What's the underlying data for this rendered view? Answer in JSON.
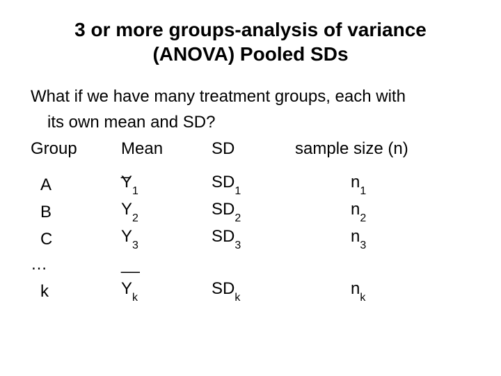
{
  "title_line1": "3 or more groups-analysis of variance",
  "title_line2": "(ANOVA) Pooled SDs",
  "intro_line1": "What if we have many treatment groups, each with",
  "intro_line2": "its own mean and SD?",
  "headers": {
    "group": "Group",
    "mean": "Mean",
    "sd": "SD",
    "n": "sample size (n)"
  },
  "overline1": "_",
  "overline2": "__",
  "rows": [
    {
      "group": "A",
      "mean_base": "Y",
      "mean_sub": "1",
      "sd_base": "SD",
      "sd_sub": "1",
      "n_base": "n",
      "n_sub": "1"
    },
    {
      "group": "B",
      "mean_base": "Y",
      "mean_sub": "2",
      "sd_base": "SD",
      "sd_sub": "2",
      "n_base": "n",
      "n_sub": "2"
    },
    {
      "group": "C",
      "mean_base": "Y",
      "mean_sub": "3",
      "sd_base": "SD",
      "sd_sub": "3",
      "n_base": "n",
      "n_sub": "3"
    }
  ],
  "ellipsis": "…",
  "last": {
    "group": "k",
    "mean_base": "Y",
    "mean_sub": "k",
    "sd_base": "SD",
    "sd_sub": "k",
    "n_base": "n",
    "n_sub": "k"
  },
  "colors": {
    "bg": "#ffffff",
    "text": "#000000"
  }
}
